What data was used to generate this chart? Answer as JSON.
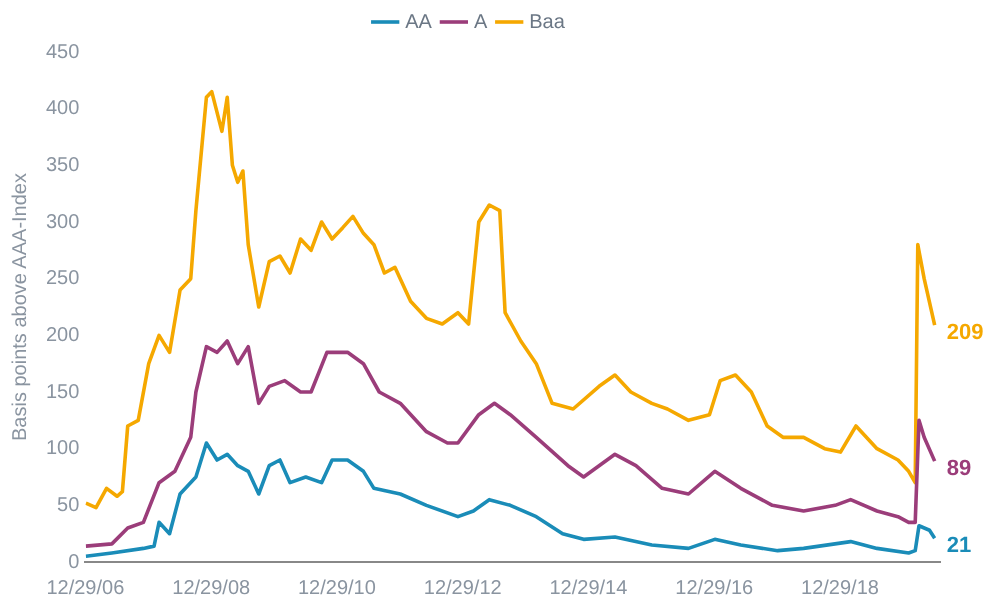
{
  "chart_data": {
    "type": "line",
    "ylabel": "Basis points above AAA-Index",
    "legend": "top",
    "grid": false,
    "marker": "none",
    "line_style": "solid",
    "xlim": [
      "2006-12-29",
      "2020-08-01"
    ],
    "xticks": [
      {
        "value": "2006-12-29",
        "label": "12/29/06"
      },
      {
        "value": "2008-12-29",
        "label": "12/29/08"
      },
      {
        "value": "2010-12-29",
        "label": "12/29/10"
      },
      {
        "value": "2012-12-29",
        "label": "12/29/12"
      },
      {
        "value": "2014-12-29",
        "label": "12/29/14"
      },
      {
        "value": "2016-12-29",
        "label": "12/29/16"
      },
      {
        "value": "2018-12-29",
        "label": "12/29/18"
      }
    ],
    "ylim": [
      0,
      450
    ],
    "yticks": [
      0,
      50,
      100,
      150,
      200,
      250,
      300,
      350,
      400,
      450
    ],
    "series": [
      {
        "name": "AA",
        "color": "#1a8cb8",
        "x": [
          "2007-01",
          "2007-06",
          "2007-12",
          "2008-02",
          "2008-03",
          "2008-05",
          "2008-07",
          "2008-10",
          "2008-12",
          "2009-02",
          "2009-04",
          "2009-06",
          "2009-08",
          "2009-10",
          "2009-12",
          "2010-02",
          "2010-04",
          "2010-07",
          "2010-10",
          "2010-12",
          "2011-03",
          "2011-06",
          "2011-08",
          "2012-01",
          "2012-06",
          "2012-12",
          "2013-03",
          "2013-06",
          "2013-10",
          "2014-03",
          "2014-08",
          "2014-12",
          "2015-06",
          "2016-01",
          "2016-08",
          "2017-01",
          "2017-06",
          "2018-01",
          "2018-06",
          "2019-03",
          "2019-08",
          "2020-02",
          "2020-03-10",
          "2020-04",
          "2020-06",
          "2020-07"
        ],
        "values": [
          5,
          8,
          12,
          14,
          35,
          25,
          60,
          75,
          105,
          90,
          95,
          85,
          80,
          60,
          85,
          90,
          70,
          75,
          70,
          90,
          90,
          80,
          65,
          60,
          50,
          40,
          45,
          55,
          50,
          40,
          25,
          20,
          22,
          15,
          12,
          20,
          15,
          10,
          12,
          18,
          12,
          8,
          10,
          32,
          28,
          21
        ]
      },
      {
        "name": "A",
        "color": "#9b3d7a",
        "x": [
          "2007-01",
          "2007-06",
          "2007-09",
          "2007-12",
          "2008-03",
          "2008-06",
          "2008-09",
          "2008-10",
          "2008-12",
          "2009-02",
          "2009-04",
          "2009-06",
          "2009-08",
          "2009-10",
          "2009-12",
          "2010-03",
          "2010-06",
          "2010-08",
          "2010-11",
          "2011-03",
          "2011-06",
          "2011-09",
          "2012-01",
          "2012-06",
          "2012-10",
          "2012-12",
          "2013-04",
          "2013-07",
          "2013-10",
          "2014-03",
          "2014-09",
          "2014-12",
          "2015-06",
          "2015-10",
          "2016-03",
          "2016-08",
          "2017-01",
          "2017-06",
          "2017-12",
          "2018-06",
          "2018-12",
          "2019-03",
          "2019-08",
          "2019-12",
          "2020-02",
          "2020-03-10",
          "2020-04",
          "2020-05",
          "2020-07"
        ],
        "values": [
          14,
          16,
          30,
          35,
          70,
          80,
          110,
          150,
          190,
          185,
          195,
          175,
          190,
          140,
          155,
          160,
          150,
          150,
          185,
          185,
          175,
          150,
          140,
          115,
          105,
          105,
          130,
          140,
          130,
          110,
          85,
          75,
          95,
          85,
          65,
          60,
          80,
          65,
          50,
          45,
          50,
          55,
          45,
          40,
          35,
          35,
          125,
          110,
          89
        ]
      },
      {
        "name": "Baa",
        "color": "#f5a800",
        "x": [
          "2007-01",
          "2007-03",
          "2007-05",
          "2007-07",
          "2007-08",
          "2007-09",
          "2007-11",
          "2008-01",
          "2008-03",
          "2008-05",
          "2008-07",
          "2008-09",
          "2008-10",
          "2008-12",
          "2009-01",
          "2009-03",
          "2009-04",
          "2009-05",
          "2009-06",
          "2009-07",
          "2009-08",
          "2009-10",
          "2009-12",
          "2010-02",
          "2010-04",
          "2010-06",
          "2010-08",
          "2010-10",
          "2010-12",
          "2011-02",
          "2011-04",
          "2011-06",
          "2011-08",
          "2011-10",
          "2011-12",
          "2012-03",
          "2012-06",
          "2012-09",
          "2012-12",
          "2013-02",
          "2013-04",
          "2013-06",
          "2013-08",
          "2013-09",
          "2013-12",
          "2014-03",
          "2014-06",
          "2014-10",
          "2015-03",
          "2015-06",
          "2015-09",
          "2016-01",
          "2016-04",
          "2016-08",
          "2016-12",
          "2017-02",
          "2017-05",
          "2017-08",
          "2017-11",
          "2018-02",
          "2018-06",
          "2018-10",
          "2019-01",
          "2019-04",
          "2019-08",
          "2019-12",
          "2020-02",
          "2020-03-10",
          "2020-03-25",
          "2020-05",
          "2020-07"
        ],
        "values": [
          52,
          48,
          65,
          58,
          62,
          120,
          125,
          175,
          200,
          185,
          240,
          250,
          310,
          410,
          415,
          380,
          410,
          350,
          335,
          345,
          280,
          225,
          265,
          270,
          255,
          285,
          275,
          300,
          285,
          295,
          305,
          290,
          280,
          255,
          260,
          230,
          215,
          210,
          220,
          210,
          300,
          315,
          310,
          220,
          195,
          175,
          140,
          135,
          155,
          165,
          150,
          140,
          135,
          125,
          130,
          160,
          165,
          150,
          120,
          110,
          110,
          100,
          97,
          120,
          100,
          90,
          80,
          70,
          280,
          250,
          209
        ]
      }
    ],
    "annotations": [
      {
        "text": "209",
        "x": "2020-07",
        "y": 209
      },
      {
        "text": "89",
        "x": "2020-07",
        "y": 89
      },
      {
        "text": "21",
        "x": "2020-07",
        "y": 21
      }
    ]
  }
}
